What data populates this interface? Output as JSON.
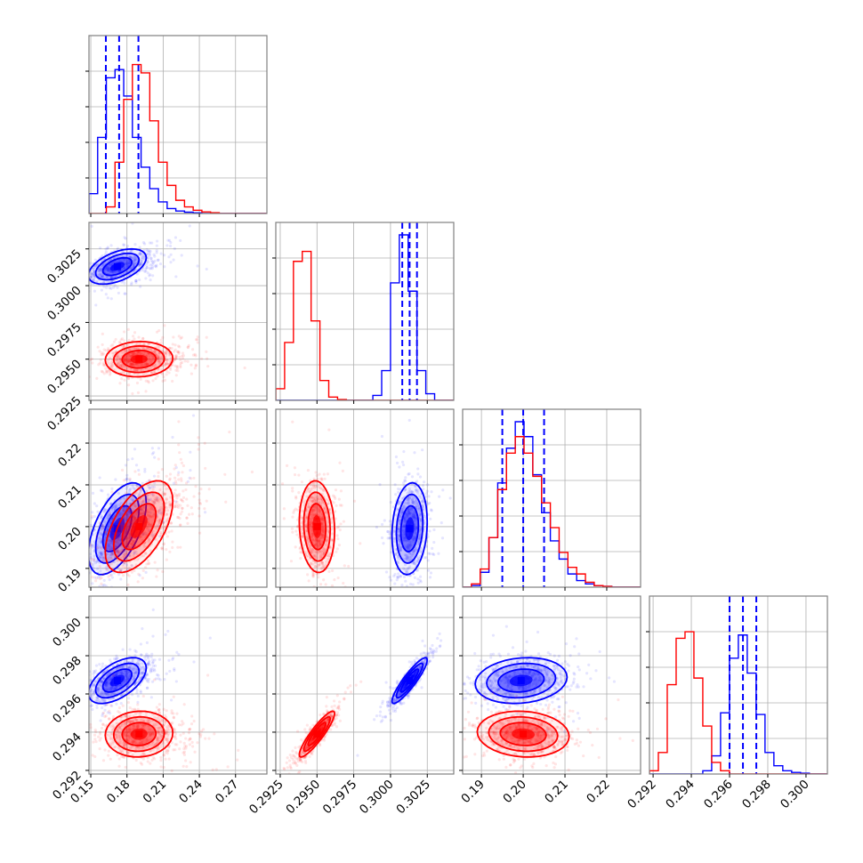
{
  "chart_data": {
    "type": "corner",
    "title": "",
    "parameters": [
      {
        "name": "param_1",
        "range": [
          0.1485,
          0.296
        ],
        "ticks": [
          "0.15",
          "0.18",
          "0.21",
          "0.24",
          "0.27"
        ]
      },
      {
        "name": "param_2",
        "range": [
          0.2922,
          0.3043
        ],
        "ticks": [
          "0.2925",
          "0.2950",
          "0.2975",
          "0.3000",
          "0.3025"
        ]
      },
      {
        "name": "param_3",
        "range": [
          0.1855,
          0.2281
        ],
        "ticks": [
          "0.19",
          "0.20",
          "0.21",
          "0.22"
        ]
      },
      {
        "name": "param_4",
        "range": [
          0.29181,
          0.30112
        ],
        "ticks": [
          "0.292",
          "0.294",
          "0.296",
          "0.298",
          "0.300"
        ]
      }
    ],
    "series": [
      {
        "name": "blue",
        "color": "#0000ff",
        "means": [
          0.172,
          0.3013,
          0.1995,
          0.2967
        ],
        "stds": [
          0.012,
          0.0006,
          0.0055,
          0.0006
        ],
        "correlations": {
          "0-1": 0.5,
          "0-2": 0.55,
          "0-3": 0.55,
          "1-2": 0.15,
          "1-3": 0.9,
          "2-3": 0.15
        },
        "quantiles": [
          [
            0.1625,
            0.1735,
            0.1895
          ],
          [
            0.3008,
            0.3013,
            0.3018
          ],
          [
            0.195,
            0.2,
            0.205
          ],
          [
            0.296,
            0.2967,
            0.2974
          ]
        ],
        "histograms": [
          {
            "edges_from": 0.1485,
            "bin_width": 0.0072,
            "counts": [
              0.12,
              0.46,
              0.82,
              0.87,
              0.71,
              0.46,
              0.28,
              0.15,
              0.07,
              0.03,
              0.015,
              0.008,
              0.004,
              0,
              0,
              0,
              0,
              0,
              0,
              0
            ]
          },
          {
            "edges_from": 0.2922,
            "bin_width": 0.0006,
            "counts": [
              0,
              0,
              0,
              0,
              0,
              0,
              0,
              0,
              0,
              0,
              0,
              0.03,
              0.18,
              0.71,
              1.0,
              0.66,
              0.18,
              0.04,
              0,
              0
            ]
          },
          {
            "edges_from": 0.1855,
            "bin_width": 0.0021,
            "counts": [
              0,
              0.01,
              0.09,
              0.3,
              0.63,
              0.84,
              1.0,
              0.91,
              0.68,
              0.45,
              0.28,
              0.17,
              0.08,
              0.04,
              0.02,
              0.01,
              0.005,
              0,
              0,
              0
            ]
          },
          {
            "edges_from": 0.29181,
            "bin_width": 0.000465,
            "counts": [
              0,
              0,
              0,
              0,
              0,
              0,
              0.02,
              0.11,
              0.37,
              0.7,
              0.84,
              0.61,
              0.36,
              0.13,
              0.05,
              0.02,
              0.01,
              0.005,
              0,
              0
            ]
          }
        ]
      },
      {
        "name": "red",
        "color": "#ff0000",
        "means": [
          0.19,
          0.295,
          0.2,
          0.2939
        ],
        "stds": [
          0.014,
          0.0006,
          0.0055,
          0.0006
        ],
        "correlations": {
          "0-1": 0.05,
          "0-2": 0.55,
          "0-3": 0.05,
          "1-2": -0.1,
          "1-3": 0.9,
          "2-3": -0.1
        },
        "histograms": [
          {
            "edges_from": 0.1485,
            "bin_width": 0.0072,
            "counts": [
              0,
              0,
              0.04,
              0.31,
              0.69,
              0.9,
              0.85,
              0.56,
              0.31,
              0.17,
              0.08,
              0.04,
              0.02,
              0.01,
              0.005,
              0,
              0,
              0,
              0,
              0
            ]
          },
          {
            "edges_from": 0.2922,
            "bin_width": 0.0006,
            "counts": [
              0.07,
              0.35,
              0.84,
              0.9,
              0.48,
              0.12,
              0.02,
              0.005,
              0,
              0,
              0,
              0,
              0,
              0,
              0,
              0,
              0,
              0,
              0,
              0
            ]
          },
          {
            "edges_from": 0.1855,
            "bin_width": 0.0021,
            "counts": [
              0,
              0.02,
              0.11,
              0.3,
              0.59,
              0.81,
              0.91,
              0.81,
              0.67,
              0.51,
              0.36,
              0.21,
              0.12,
              0.08,
              0.03,
              0.01,
              0.005,
              0,
              0,
              0
            ]
          },
          {
            "edges_from": 0.29181,
            "bin_width": 0.000465,
            "counts": [
              0.02,
              0.13,
              0.54,
              0.82,
              0.86,
              0.58,
              0.29,
              0.07,
              0.02,
              0,
              0,
              0,
              0,
              0,
              0,
              0,
              0,
              0,
              0,
              0
            ]
          }
        ]
      }
    ],
    "contour_levels_sigma": [
      0.5,
      1.0,
      1.5,
      2.0
    ],
    "grid": true,
    "legend": "none"
  }
}
